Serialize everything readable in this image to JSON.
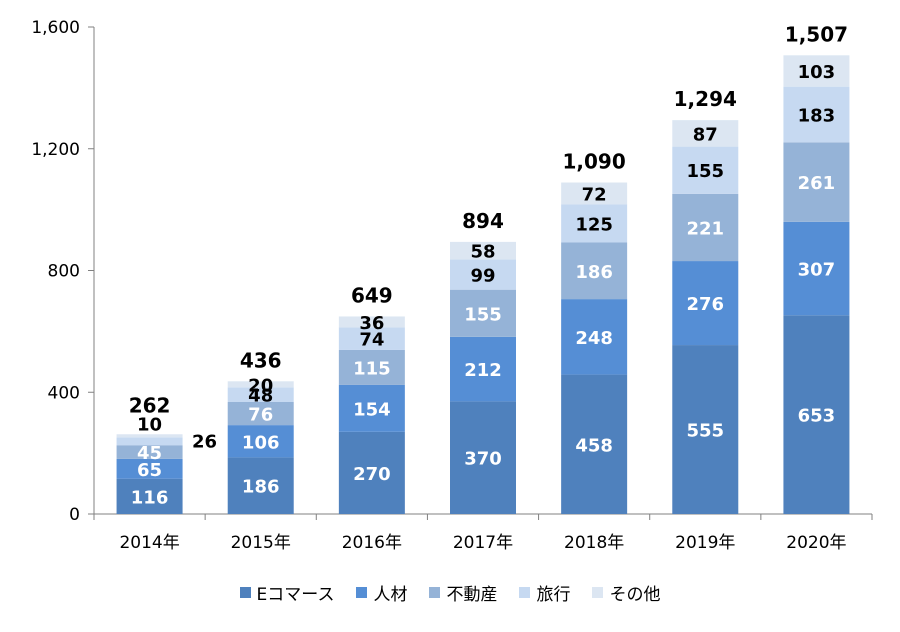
{
  "chart_data": {
    "type": "bar",
    "stacked": true,
    "categories": [
      "2014年",
      "2015年",
      "2016年",
      "2017年",
      "2018年",
      "2019年",
      "2020年"
    ],
    "series": [
      {
        "name": "Eコマース",
        "color": "#4f81bd",
        "values": [
          116,
          186,
          270,
          370,
          458,
          555,
          653
        ]
      },
      {
        "name": "人材",
        "color": "#558ed5",
        "values": [
          65,
          106,
          154,
          212,
          248,
          276,
          307
        ]
      },
      {
        "name": "不動産",
        "color": "#95b3d7",
        "values": [
          45,
          76,
          115,
          155,
          186,
          221,
          261
        ]
      },
      {
        "name": "旅行",
        "color": "#c6d9f1",
        "values": [
          26,
          48,
          74,
          99,
          125,
          155,
          183
        ]
      },
      {
        "name": "その他",
        "color": "#dce6f2",
        "values": [
          10,
          20,
          36,
          58,
          72,
          87,
          103
        ]
      }
    ],
    "totals": [
      "262",
      "436",
      "649",
      "894",
      "1,090",
      "1,294",
      "1,507"
    ],
    "ylim": [
      0,
      1600
    ],
    "yticks": [
      "0",
      "400",
      "800",
      "1,200",
      "1,600"
    ],
    "grid": false,
    "legend": "bottom"
  }
}
